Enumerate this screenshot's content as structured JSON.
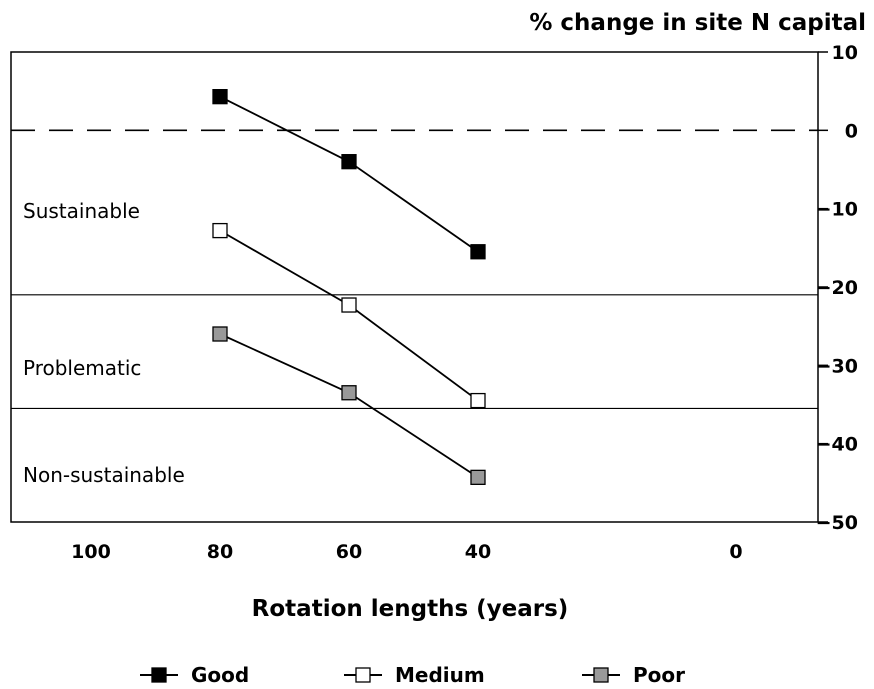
{
  "chart_data": {
    "type": "line",
    "ylabel": "% change in site N capital",
    "xlabel": "Rotation lengths (years)",
    "x_ticks": [
      100,
      80,
      60,
      40,
      0
    ],
    "y_ticks": [
      10,
      0,
      -10,
      -20,
      -30,
      -40,
      -50
    ],
    "ylim": [
      -50,
      10
    ],
    "x_reversed": true,
    "y_axis_side": "right",
    "zero_line": "dashed",
    "zones": [
      {
        "label": "Sustainable",
        "upper": 0,
        "lower": -21
      },
      {
        "label": "Problematic",
        "upper": -21,
        "lower": -35.5
      },
      {
        "label": "Non-sustainable",
        "upper": -35.5,
        "lower": -50
      }
    ],
    "zone_boundaries": [
      -21,
      -35.5
    ],
    "series": [
      {
        "name": "Good",
        "marker_fill": "#000000",
        "x": [
          80,
          60,
          40
        ],
        "y": [
          4.3,
          -4,
          -15.5
        ]
      },
      {
        "name": "Medium",
        "marker_fill": "#ffffff",
        "x": [
          80,
          60,
          40
        ],
        "y": [
          -12.8,
          -22.3,
          -34.5
        ]
      },
      {
        "name": "Poor",
        "marker_fill": "#999999",
        "x": [
          80,
          60,
          40
        ],
        "y": [
          -26,
          -33.5,
          -44.3
        ]
      }
    ],
    "legend_position": "bottom",
    "grid": false
  }
}
